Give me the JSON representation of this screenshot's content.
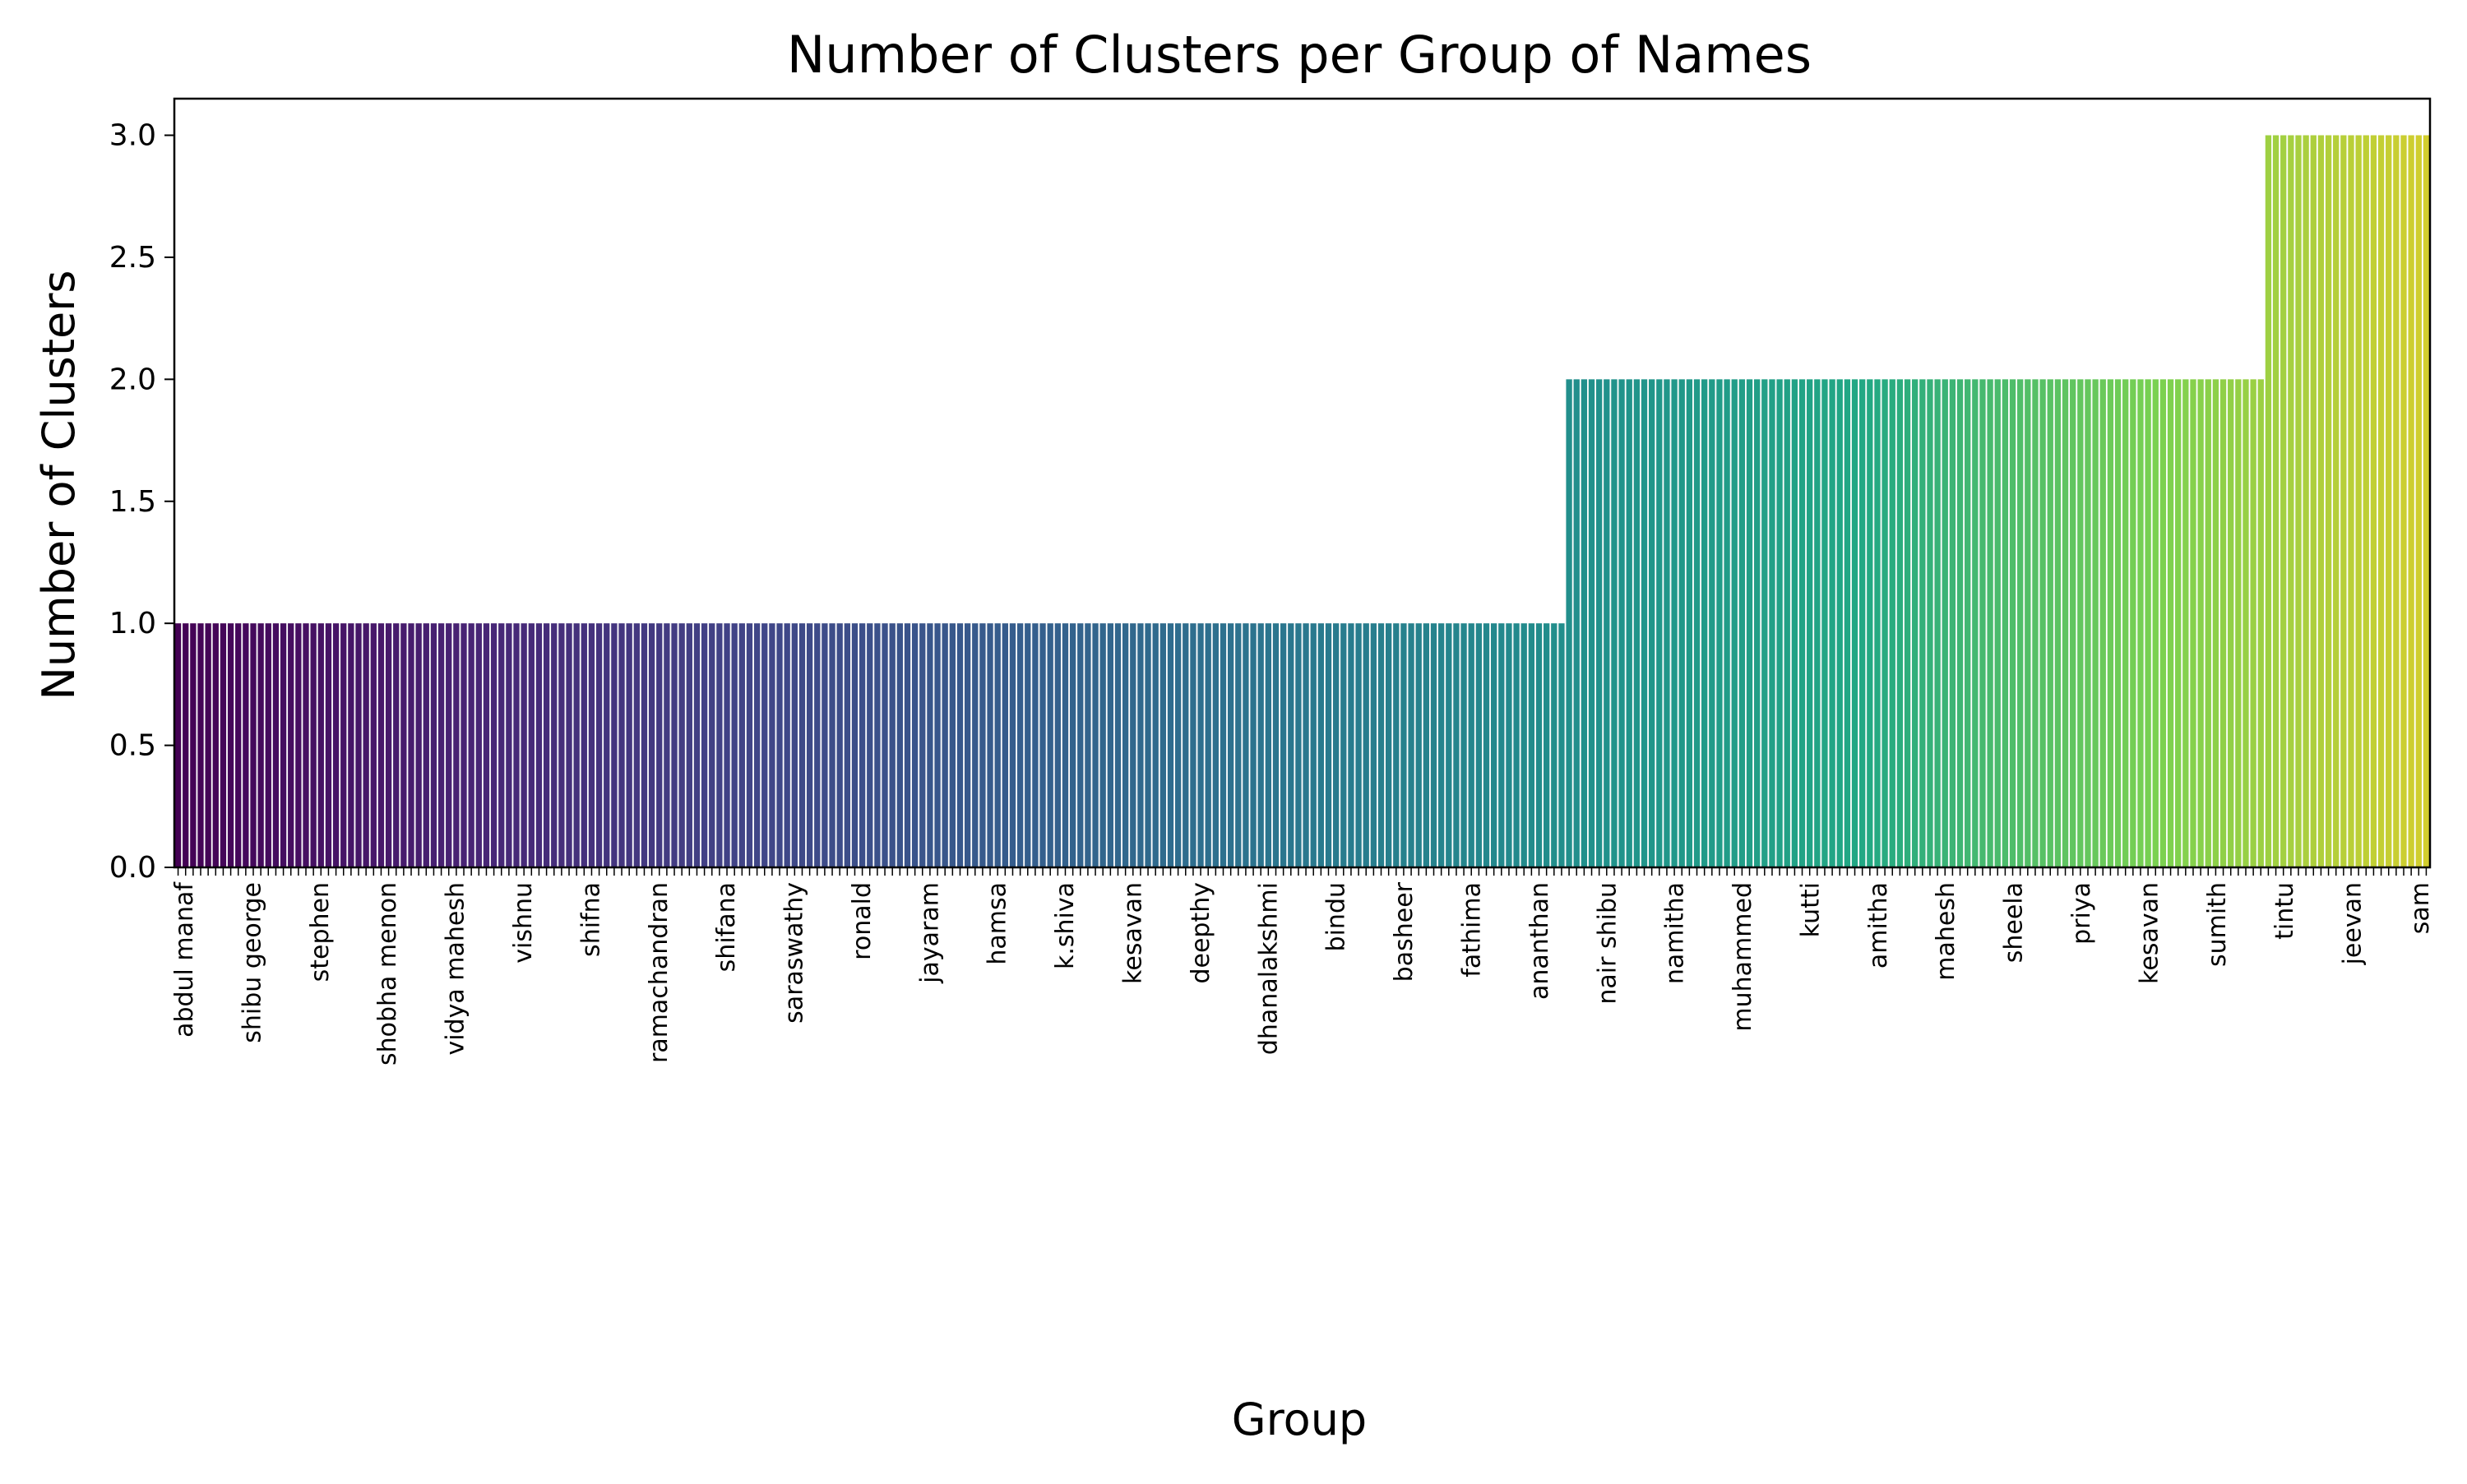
{
  "chart_data": {
    "type": "bar",
    "title": "Number of Clusters per Group of Names",
    "xlabel": "Group",
    "ylabel": "Number of Clusters",
    "ylim": [
      0,
      3.15
    ],
    "yticks": [
      "0.0",
      "0.5",
      "1.0",
      "1.5",
      "2.0",
      "2.5",
      "3.0"
    ],
    "grid": false,
    "legend": "none",
    "colormap": "viridis",
    "n_groups": 300,
    "value_runs": [
      {
        "value": 1,
        "count": 185
      },
      {
        "value": 2,
        "count": 93
      },
      {
        "value": 3,
        "count": 22
      }
    ],
    "visible_category_labels": [
      "abdul manaf",
      "shibu george",
      "stephen",
      "shobha menon",
      "vidya mahesh",
      "vishnu",
      "shifna",
      "ramachandran",
      "shifana",
      "saraswathy",
      "ronald",
      "jayaram",
      "hamsa",
      "k.shiva",
      "kesavan",
      "deepthy",
      "dhanalakshmi",
      "bindu",
      "basheer",
      "fathima",
      "ananthan",
      "nair shibu",
      "namitha",
      "muhammed",
      "kutti",
      "amitha",
      "mahesh",
      "sheela",
      "priya",
      "kesavan",
      "sumith",
      "tintu",
      "jeevan",
      "sam"
    ],
    "colors": {
      "start": "#440154",
      "mid": "#21918c",
      "end": "#d2ce2e"
    }
  }
}
